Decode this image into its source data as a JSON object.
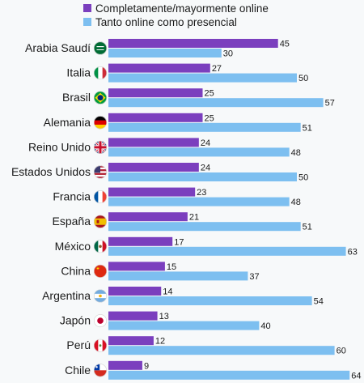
{
  "chart_data": {
    "type": "bar",
    "orientation": "horizontal",
    "categories": [
      "Arabia Saudí",
      "Italia",
      "Brasil",
      "Alemania",
      "Reino Unido",
      "Estados Unidos",
      "Francia",
      "España",
      "México",
      "China",
      "Argentina",
      "Japón",
      "Perú",
      "Chile"
    ],
    "series": [
      {
        "name": "Completamente/mayormente online",
        "color": "#7b3fbe",
        "values": [
          45,
          27,
          25,
          25,
          24,
          24,
          23,
          21,
          17,
          15,
          14,
          13,
          12,
          9
        ]
      },
      {
        "name": "Tanto online como presencial",
        "color": "#7dbff0",
        "values": [
          30,
          50,
          57,
          51,
          48,
          50,
          48,
          51,
          63,
          37,
          54,
          40,
          60,
          64
        ]
      }
    ],
    "xlim": [
      0,
      64
    ],
    "grid": false,
    "legend_position": "top",
    "flag_icons": [
      "saudi-arabia-flag-icon",
      "italy-flag-icon",
      "brazil-flag-icon",
      "germany-flag-icon",
      "uk-flag-icon",
      "usa-flag-icon",
      "france-flag-icon",
      "spain-flag-icon",
      "mexico-flag-icon",
      "china-flag-icon",
      "argentina-flag-icon",
      "japan-flag-icon",
      "peru-flag-icon",
      "chile-flag-icon"
    ]
  }
}
